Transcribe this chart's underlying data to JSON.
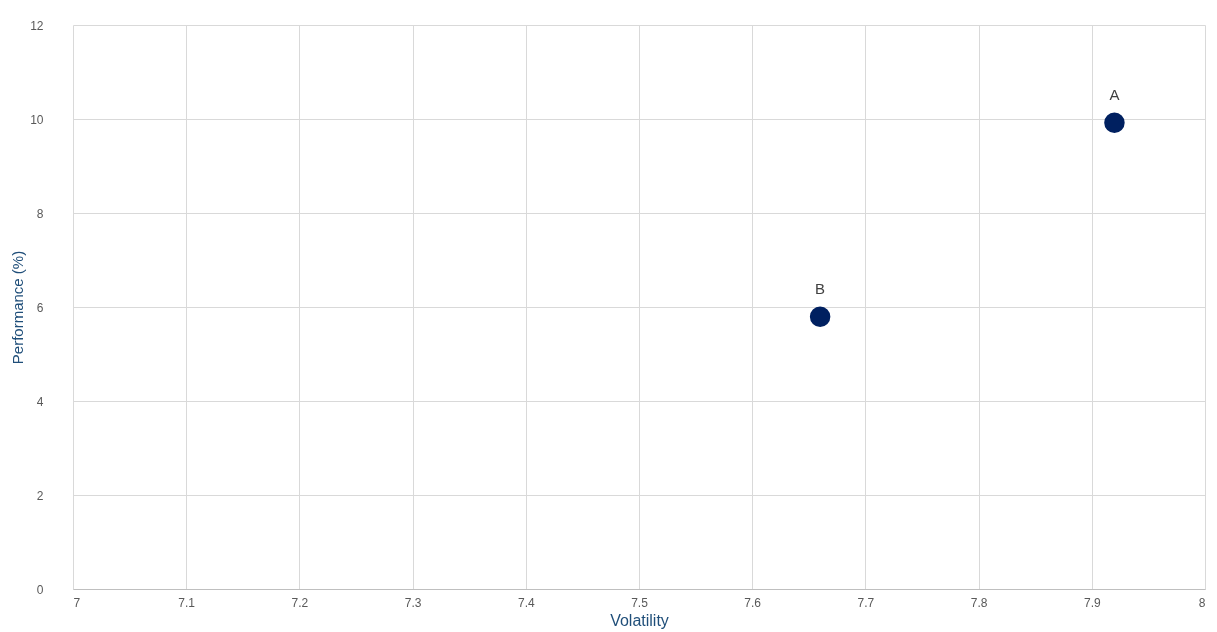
{
  "chart_data": {
    "type": "scatter",
    "xlabel": "Volatility",
    "ylabel": "Performance (%)",
    "series": [
      {
        "name": "A",
        "color": "#002060",
        "x": [
          7.92
        ],
        "values": [
          9.92
        ]
      },
      {
        "name": "B",
        "color": "#002060",
        "x": [
          7.66
        ],
        "values": [
          5.79
        ]
      }
    ],
    "xlim": [
      7,
      8
    ],
    "xticks": [
      7,
      7.1,
      7.2,
      7.3,
      7.4,
      7.5,
      7.6,
      7.7,
      7.8,
      7.9,
      8
    ],
    "ylim": [
      0,
      12
    ],
    "yticks": [
      0,
      2,
      4,
      6,
      8,
      10,
      12
    ],
    "grid": true,
    "legend": false,
    "marker": "circle"
  }
}
